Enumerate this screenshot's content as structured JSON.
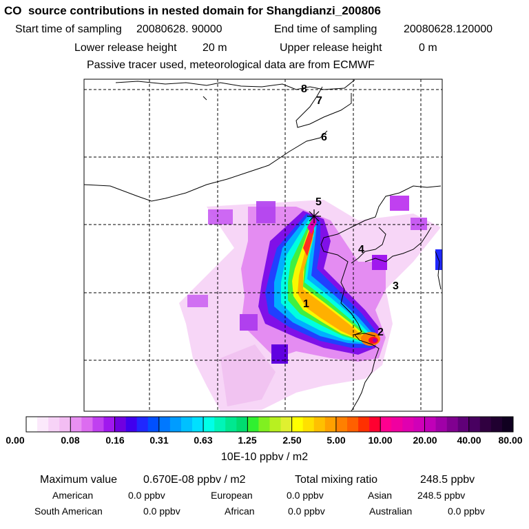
{
  "header": {
    "title": "CO  source contributions in nested domain for Shangdianzi_200806",
    "start_label": "Start time of sampling",
    "start_value": "20080628. 90000",
    "end_label": "End time of sampling",
    "end_value": "20080628.120000",
    "lower_label": "Lower release height",
    "lower_value": "20 m",
    "upper_label": "Upper release height",
    "upper_value": "0 m",
    "note": "Passive tracer used, meteorological data are from ECMWF"
  },
  "map": {
    "labels": [
      "1",
      "2",
      "3",
      "4",
      "5",
      "6",
      "7",
      "8"
    ],
    "receptor_symbol": "asterisk",
    "gridlines": "dashed",
    "coastline_color": "#000000"
  },
  "colorbar": {
    "ticks": [
      "0.00",
      "0.08",
      "0.16",
      "0.31",
      "0.63",
      "1.25",
      "2.50",
      "5.00",
      "10.00",
      "20.00",
      "40.00",
      "80.00"
    ],
    "colors": [
      "#ffffff",
      "#fbe9fb",
      "#f7d3f7",
      "#f3bdf3",
      "#e890f2",
      "#dc6cf0",
      "#c040f0",
      "#a018ee",
      "#7000e0",
      "#4000ee",
      "#2028ff",
      "#0050ff",
      "#0078ff",
      "#009cff",
      "#00c0ff",
      "#00e0ff",
      "#00ffe8",
      "#00f5b8",
      "#00e890",
      "#00dc70",
      "#30f030",
      "#80f020",
      "#b8f020",
      "#e0f030",
      "#ffff00",
      "#ffe000",
      "#ffc000",
      "#ffa000",
      "#ff8000",
      "#ff6000",
      "#ff3000",
      "#ff0030",
      "#ff0090",
      "#f000a0",
      "#e000b0",
      "#d000b8",
      "#c000b8",
      "#a000a8",
      "#800090",
      "#600078",
      "#480060",
      "#300040",
      "#200030",
      "#100020"
    ],
    "units": "10E-10 ppbv / m2"
  },
  "stats": {
    "max_label": "Maximum value",
    "max_value": "0.670E-08 ppbv / m2",
    "total_label": "Total mixing ratio",
    "total_value": "248.5 ppbv",
    "regions": [
      {
        "name": "American",
        "value": "0.0 ppbv"
      },
      {
        "name": "European",
        "value": "0.0 ppbv"
      },
      {
        "name": "Asian",
        "value": "248.5 ppbv"
      },
      {
        "name": "South American",
        "value": "0.0 ppbv"
      },
      {
        "name": "African",
        "value": "0.0 ppbv"
      },
      {
        "name": "Australian",
        "value": "0.0 ppbv"
      }
    ]
  }
}
